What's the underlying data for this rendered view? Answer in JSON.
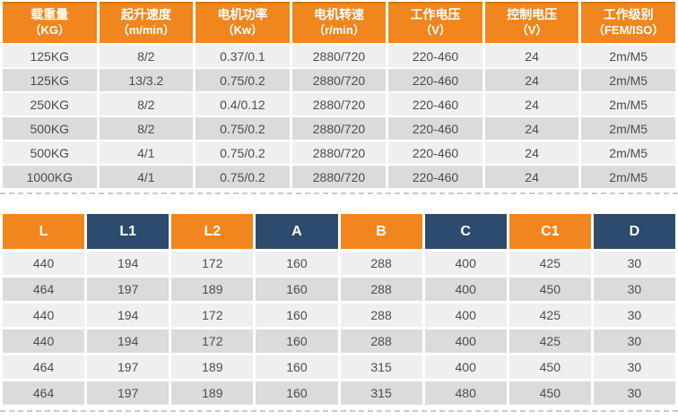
{
  "colors": {
    "orange": "#F0861D",
    "navy": "#2C4B6D",
    "row_light": "#EFEFEF",
    "row_dark": "#DBDBDB",
    "cell_text": "#4D4D4D",
    "header_text": "#FFFFFF",
    "dash": "#C9C9C9"
  },
  "spec_table": {
    "headers": [
      {
        "line1": "载重量",
        "line2": "（KG）"
      },
      {
        "line1": "起升速度",
        "line2": "（m/min）"
      },
      {
        "line1": "电机功率",
        "line2": "（Kw）"
      },
      {
        "line1": "电机转速",
        "line2": "（r/min）"
      },
      {
        "line1": "工作电压",
        "line2": "（V）"
      },
      {
        "line1": "控制电压",
        "line2": "（V）"
      },
      {
        "line1": "工作级别",
        "line2": "（FEM/ISO）"
      }
    ],
    "rows": [
      [
        "125KG",
        "8/2",
        "0.37/0.1",
        "2880/720",
        "220-460",
        "24",
        "2m/M5"
      ],
      [
        "125KG",
        "13/3.2",
        "0.75/0.2",
        "2880/720",
        "220-460",
        "24",
        "2m/M5"
      ],
      [
        "250KG",
        "8/2",
        "0.4/0.12",
        "2880/720",
        "220-460",
        "24",
        "2m/M5"
      ],
      [
        "500KG",
        "8/2",
        "0.75/0.2",
        "2880/720",
        "220-460",
        "24",
        "2m/M5"
      ],
      [
        "500KG",
        "4/1",
        "0.75/0.2",
        "2880/720",
        "220-460",
        "24",
        "2m/M5"
      ],
      [
        "1000KG",
        "4/1",
        "0.75/0.2",
        "2880/720",
        "220-460",
        "24",
        "2m/M5"
      ]
    ]
  },
  "dimension_table": {
    "headers": [
      "L",
      "L1",
      "L2",
      "A",
      "B",
      "C",
      "C1",
      "D"
    ],
    "rows": [
      [
        "440",
        "194",
        "172",
        "160",
        "288",
        "400",
        "425",
        "30"
      ],
      [
        "464",
        "197",
        "189",
        "160",
        "288",
        "400",
        "450",
        "30"
      ],
      [
        "440",
        "194",
        "172",
        "160",
        "288",
        "400",
        "425",
        "30"
      ],
      [
        "440",
        "194",
        "172",
        "160",
        "288",
        "400",
        "425",
        "30"
      ],
      [
        "464",
        "197",
        "189",
        "160",
        "315",
        "400",
        "450",
        "30"
      ],
      [
        "464",
        "197",
        "189",
        "160",
        "315",
        "480",
        "450",
        "30"
      ]
    ]
  }
}
